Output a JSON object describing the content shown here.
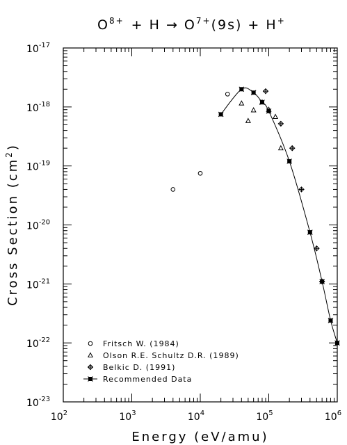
{
  "title": {
    "main": "O",
    "sup1": "8+",
    "mid": "+ H → O",
    "sup2": "7+",
    "tail": "(9s) + H",
    "sup3": "+"
  },
  "axes": {
    "xlabel": "Energy (eV/amu)",
    "ylabel_main": "Cross Section (cm",
    "ylabel_sup": "2",
    "ylabel_end": ")",
    "x_ticks": [
      {
        "base": "10",
        "exp": "2"
      },
      {
        "base": "10",
        "exp": "3"
      },
      {
        "base": "10",
        "exp": "4"
      },
      {
        "base": "10",
        "exp": "5"
      },
      {
        "base": "10",
        "exp": "6"
      }
    ],
    "y_ticks": [
      {
        "base": "10",
        "exp": "-23"
      },
      {
        "base": "10",
        "exp": "-22"
      },
      {
        "base": "10",
        "exp": "-21"
      },
      {
        "base": "10",
        "exp": "-20"
      },
      {
        "base": "10",
        "exp": "-19"
      },
      {
        "base": "10",
        "exp": "-18"
      },
      {
        "base": "10",
        "exp": "-17"
      }
    ]
  },
  "chart_data": {
    "type": "scatter",
    "title": "O8+ + H → O7+(9s) + H+",
    "xlabel": "Energy (eV/amu)",
    "ylabel": "Cross Section (cm2)",
    "xscale": "log",
    "yscale": "log",
    "xlim": [
      100,
      1000000
    ],
    "ylim": [
      1e-23,
      1e-17
    ],
    "legend_position": "bottom-left",
    "series": [
      {
        "name": "Fritsch W. (1984)",
        "marker": "circle",
        "x": [
          4000,
          10000,
          25000
        ],
        "y": [
          4e-20,
          7.5e-20,
          1.65e-18
        ]
      },
      {
        "name": "Olson R.E. Schultz D.R. (1989)",
        "marker": "triangle",
        "x": [
          40000,
          50000,
          60000,
          80000,
          100000,
          125000,
          150000
        ],
        "y": [
          1.15e-18,
          5.8e-19,
          8.8e-19,
          1.2e-18,
          9e-19,
          6.8e-19,
          2e-19
        ]
      },
      {
        "name": "Belkic D. (1991)",
        "marker": "diamond-cross",
        "x": [
          90000,
          150000,
          220000,
          300000,
          500000,
          600000
        ],
        "y": [
          1.85e-18,
          5.2e-19,
          2e-19,
          4e-20,
          4e-21,
          1.1e-21
        ]
      },
      {
        "name": "Recommended Data",
        "marker": "square-cross",
        "line": true,
        "x": [
          20000,
          40000,
          60000,
          80000,
          100000,
          200000,
          400000,
          600000,
          800000,
          1000000
        ],
        "y": [
          7.5e-19,
          2e-18,
          1.75e-18,
          1.2e-18,
          8.5e-19,
          1.2e-19,
          7.5e-21,
          1.1e-21,
          2.4e-22,
          1e-22
        ]
      }
    ]
  }
}
